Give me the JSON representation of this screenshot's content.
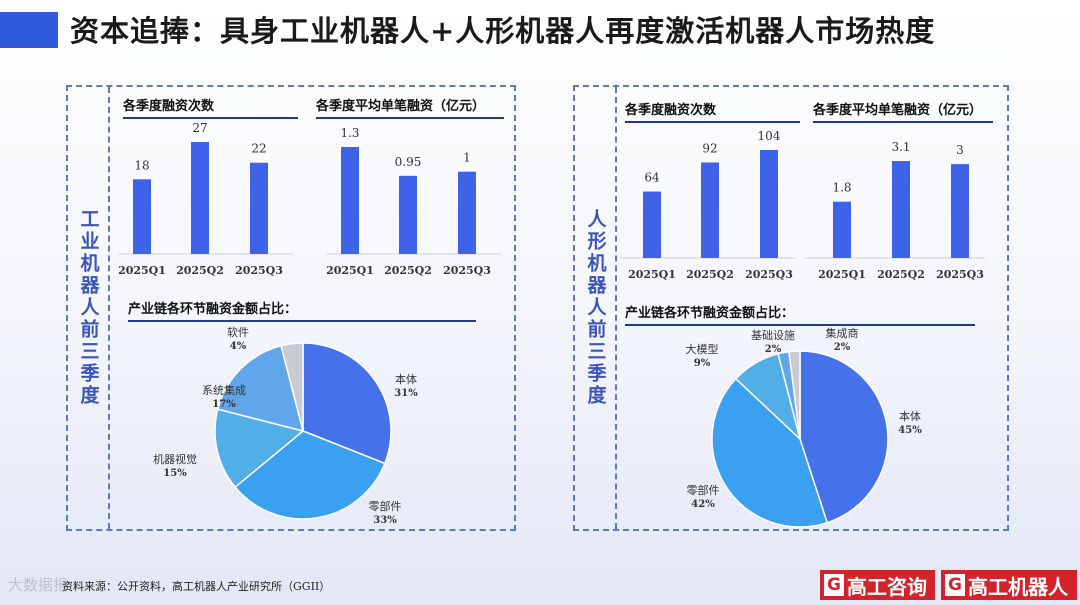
{
  "title": "资本追捧：具身工业机器人+人形机器人再度激活机器人市场热度",
  "panels": [
    {
      "side_label": "工业机器人前三季度",
      "count_title": "各季度融资次数",
      "avg_title": "各季度平均单笔融资（亿元）",
      "pie_title": "产业链各环节融资金额占比："
    },
    {
      "side_label": "人形机器人前三季度",
      "count_title": "各季度融资次数",
      "avg_title": "各季度平均单笔融资（亿元）",
      "pie_title": "产业链各环节融资金额占比："
    }
  ],
  "chart_data": [
    {
      "type": "bar",
      "panel": "工业机器人",
      "categories": [
        "2025Q1",
        "2025Q2",
        "2025Q3"
      ],
      "values": [
        18,
        27,
        22
      ],
      "value_labels": [
        "18",
        "27",
        "22"
      ],
      "color": "#3f63e8"
    },
    {
      "type": "bar",
      "panel": "工业机器人",
      "categories": [
        "2025Q1",
        "2025Q2",
        "2025Q3"
      ],
      "values": [
        1.3,
        0.95,
        1
      ],
      "value_labels": [
        "1.3",
        "0.95",
        "1"
      ],
      "color": "#3f63e8"
    },
    {
      "type": "pie",
      "panel": "工业机器人",
      "start": "12 o'clock",
      "direction": "clockwise",
      "slices": [
        {
          "label": "本体",
          "pct": 31,
          "color": "#4572ea"
        },
        {
          "label": "零部件",
          "pct": 33,
          "color": "#3aa1f1"
        },
        {
          "label": "机器视觉",
          "pct": 15,
          "color": "#52aee6"
        },
        {
          "label": "系统集成",
          "pct": 17,
          "color": "#5fa6ea"
        },
        {
          "label": "软件",
          "pct": 4,
          "color": "#c8ccd2"
        }
      ]
    },
    {
      "type": "bar",
      "panel": "人形机器人",
      "categories": [
        "2025Q1",
        "2025Q2",
        "2025Q3"
      ],
      "values": [
        64,
        92,
        104
      ],
      "value_labels": [
        "64",
        "92",
        "104"
      ],
      "color": "#3f63e8"
    },
    {
      "type": "bar",
      "panel": "人形机器人",
      "categories": [
        "2025Q1",
        "2025Q2",
        "2025Q3"
      ],
      "values": [
        1.8,
        3.1,
        3
      ],
      "value_labels": [
        "1.8",
        "3.1",
        "3"
      ],
      "color": "#3f63e8"
    },
    {
      "type": "pie",
      "panel": "人形机器人",
      "start": "12 o'clock",
      "direction": "clockwise",
      "slices": [
        {
          "label": "本体",
          "pct": 45,
          "color": "#4572ea"
        },
        {
          "label": "零部件",
          "pct": 42,
          "color": "#3aa1f1"
        },
        {
          "label": "大模型",
          "pct": 9,
          "color": "#52aee6"
        },
        {
          "label": "基础设施",
          "pct": 2,
          "color": "#5fa6ea"
        },
        {
          "label": "集成商",
          "pct": 2,
          "color": "#c8ccd2"
        }
      ]
    }
  ],
  "source": "资料来源：公开资料，高工机器人产业研究所（GGII）",
  "watermark": "大数据报",
  "logos": [
    {
      "mark": "G",
      "text": "高工咨询"
    },
    {
      "mark": "G",
      "text": "高工机器人"
    }
  ]
}
